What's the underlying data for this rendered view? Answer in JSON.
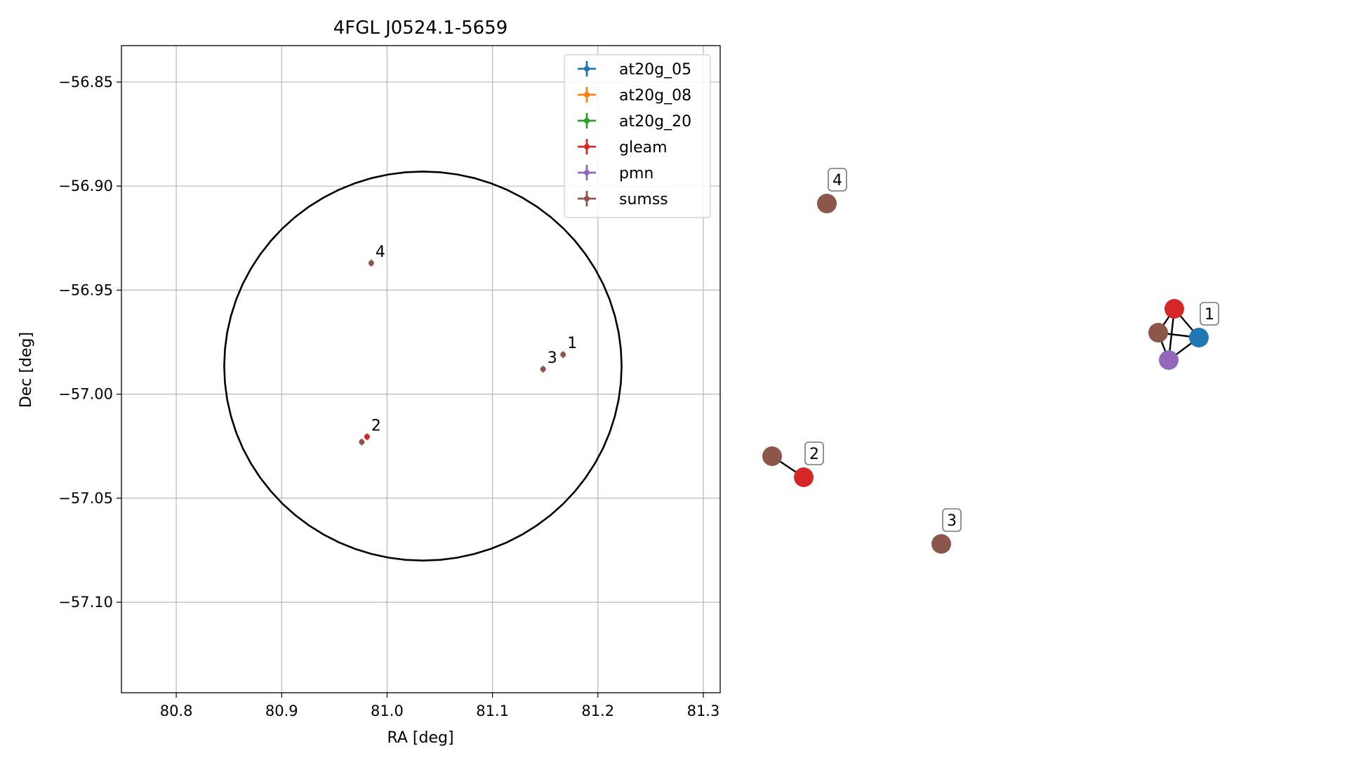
{
  "chart_data": [
    {
      "type": "scatter",
      "title": "4FGL J0524.1-5659",
      "xlabel": "RA [deg]",
      "ylabel": "Dec [deg]",
      "xlim": [
        80.748,
        81.316
      ],
      "ylim": [
        -57.1435,
        -56.8325
      ],
      "x_ticks": [
        80.8,
        80.9,
        81.0,
        81.1,
        81.2,
        81.3
      ],
      "x_tick_labels": [
        "80.8",
        "80.9",
        "81.0",
        "81.1",
        "81.2",
        "81.3"
      ],
      "y_ticks": [
        -56.85,
        -56.9,
        -56.95,
        -57.0,
        -57.05,
        -57.1
      ],
      "y_tick_labels": [
        "−56.85",
        "−56.90",
        "−56.95",
        "−57.00",
        "−57.05",
        "−57.10"
      ],
      "grid": true,
      "legend_position": "top-right",
      "series": [
        {
          "name": "at20g_05",
          "color": "#1f77b4",
          "points": []
        },
        {
          "name": "at20g_08",
          "color": "#ff7f0e",
          "points": []
        },
        {
          "name": "at20g_20",
          "color": "#2ca02c",
          "points": []
        },
        {
          "name": "gleam",
          "color": "#d62728",
          "points": [
            {
              "x": 80.981,
              "y": -57.0205
            }
          ]
        },
        {
          "name": "pmn",
          "color": "#9467bd",
          "points": []
        },
        {
          "name": "sumss",
          "color": "#8c564b",
          "points": [
            {
              "x": 81.167,
              "y": -56.981
            },
            {
              "x": 80.976,
              "y": -57.023
            },
            {
              "x": 81.148,
              "y": -56.988
            },
            {
              "x": 80.985,
              "y": -56.937
            }
          ]
        }
      ],
      "error_circle": {
        "ra": 81.034,
        "dec": -56.9865,
        "ra_radius": 0.1885,
        "dec_radius": 0.0935
      },
      "source_labels": [
        {
          "text": "1",
          "x": 81.167,
          "y": -56.981
        },
        {
          "text": "2",
          "x": 80.981,
          "y": -57.0205
        },
        {
          "text": "3",
          "x": 81.148,
          "y": -56.988
        },
        {
          "text": "4",
          "x": 80.985,
          "y": -56.937
        }
      ]
    },
    {
      "type": "graph",
      "nodes": [
        {
          "id": "n1",
          "color": "#d62728"
        },
        {
          "id": "n2",
          "color": "#8c564b"
        },
        {
          "id": "n3",
          "color": "#1f77b4"
        },
        {
          "id": "n4",
          "color": "#9467bd"
        },
        {
          "id": "n5",
          "color": "#8c564b"
        },
        {
          "id": "n6",
          "color": "#d62728"
        },
        {
          "id": "n7",
          "color": "#8c564b"
        },
        {
          "id": "n8",
          "color": "#8c564b"
        }
      ],
      "edges": [
        [
          "n1",
          "n2"
        ],
        [
          "n1",
          "n3"
        ],
        [
          "n1",
          "n4"
        ],
        [
          "n2",
          "n3"
        ],
        [
          "n2",
          "n4"
        ],
        [
          "n3",
          "n4"
        ],
        [
          "n5",
          "n6"
        ]
      ],
      "group_labels": [
        {
          "text": "1",
          "node": "n3"
        },
        {
          "text": "2",
          "node": "n6"
        },
        {
          "text": "3",
          "node": "n7"
        },
        {
          "text": "4",
          "node": "n8"
        }
      ]
    }
  ]
}
